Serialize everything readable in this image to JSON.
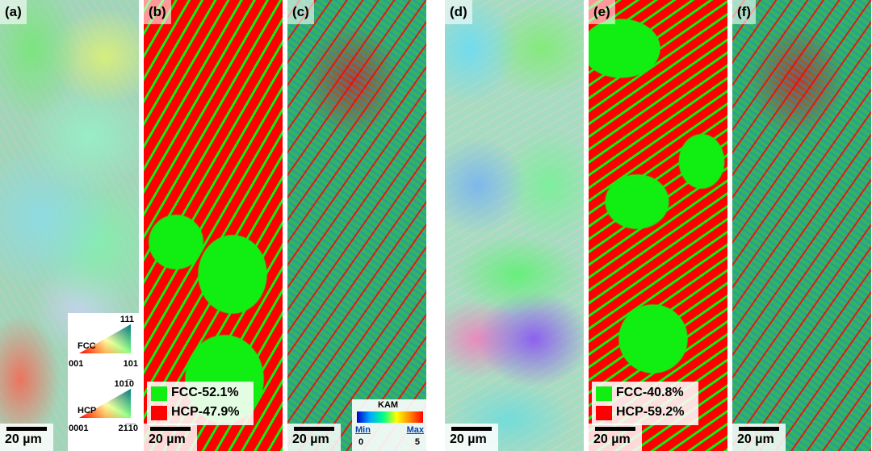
{
  "panels": [
    {
      "label": "(a)",
      "scale_bar": "20 µm"
    },
    {
      "label": "(b)",
      "scale_bar": "20 µm"
    },
    {
      "label": "(c)",
      "scale_bar": "20 µm"
    },
    {
      "label": "(d)",
      "scale_bar": "20 µm"
    },
    {
      "label": "(e)",
      "scale_bar": "20 µm"
    },
    {
      "label": "(f)",
      "scale_bar": "20 µm"
    }
  ],
  "ipf_legend": {
    "fcc": {
      "name": "FCC",
      "top": "111",
      "left": "001",
      "right": "101"
    },
    "hcp": {
      "name": "HCP",
      "top": "101̅0",
      "left": "0001",
      "right": "21̅1̅0"
    }
  },
  "phase_legends": [
    {
      "panel": "(b)",
      "fcc": "FCC-52.1%",
      "hcp": "HCP-47.9%"
    },
    {
      "panel": "(e)",
      "fcc": "FCC-40.8%",
      "hcp": "HCP-59.2%"
    }
  ],
  "kam_legend": {
    "title": "KAM",
    "min_label": "Min",
    "max_label": "Max",
    "min": "0",
    "max": "5"
  }
}
